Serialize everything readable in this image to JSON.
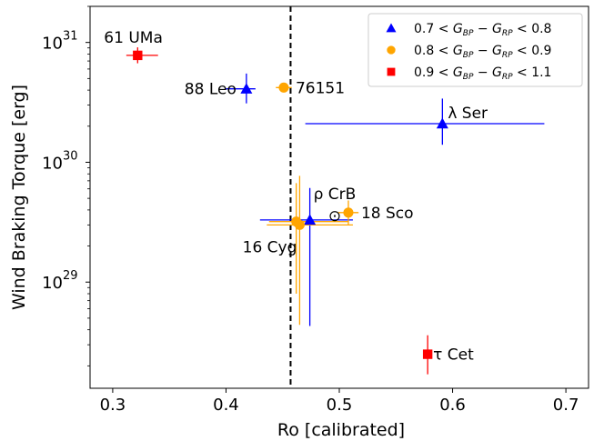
{
  "chart_data": {
    "type": "scatter",
    "xlabel": "Ro [calibrated]",
    "ylabel": "Wind Braking Torque [erg]",
    "xlim": [
      0.28,
      0.72
    ],
    "ylim": [
      1.3e+28,
      2e+31
    ],
    "y_scale": "log",
    "x_ticks": [
      0.3,
      0.4,
      0.5,
      0.6,
      0.7
    ],
    "x_tick_labels": [
      "0.3",
      "0.4",
      "0.5",
      "0.6",
      "0.7"
    ],
    "y_ticks": [
      1e+29,
      1e+30,
      1e+31
    ],
    "y_tick_labels": [
      {
        "base": "10",
        "exp": "29"
      },
      {
        "base": "10",
        "exp": "30"
      },
      {
        "base": "10",
        "exp": "31"
      }
    ],
    "reference_line": {
      "x": 0.457,
      "style": "dashed",
      "color": "#000000"
    },
    "sun": {
      "x": 0.496,
      "y": 3.6e+29,
      "symbol": "⊙"
    },
    "legend": {
      "placement": "top-right",
      "entries": [
        {
          "label_prefix": "0.7 < ",
          "label_suffix": " < 0.8",
          "marker": "triangle",
          "color": "#0000ff"
        },
        {
          "label_prefix": "0.8 < ",
          "label_suffix": " < 0.9",
          "marker": "circle",
          "color": "#ffa500"
        },
        {
          "label_prefix": "0.9 < ",
          "label_suffix": " < 1.1",
          "marker": "square",
          "color": "#ff0000"
        }
      ],
      "term_a": {
        "main": "G",
        "sub": "BP"
      },
      "term_b": {
        "main": "G",
        "sub": "RP"
      },
      "minus": "−"
    },
    "points": [
      {
        "name": "61 UMa",
        "group": 2,
        "x": 0.322,
        "y": 7.8e+30,
        "xerr": [
          0.01,
          0.018
        ],
        "yerr": [
          1.1e+30,
          1.3e+30
        ],
        "label": "61 UMa",
        "label_anchor": "start",
        "label_dx": -37,
        "label_dy": -14
      },
      {
        "name": "88 Leo",
        "group": 0,
        "x": 0.418,
        "y": 4.1e+30,
        "xerr": [
          0.018,
          0.008
        ],
        "yerr": [
          1e+30,
          1.4e+30
        ],
        "label": "88 Leo",
        "label_anchor": "end",
        "label_dx": -11,
        "label_dy": 6
      },
      {
        "name": "76151",
        "group": 1,
        "x": 0.451,
        "y": 4.2e+30,
        "xerr": [
          0.007,
          0.007
        ],
        "yerr": [
          3.5e+29,
          3.5e+29
        ],
        "label": "76151",
        "label_anchor": "start",
        "label_dx": 13,
        "label_dy": 6
      },
      {
        "name": "λ Ser",
        "group": 0,
        "x": 0.591,
        "y": 2.1e+30,
        "xerr": [
          0.121,
          0.09
        ],
        "yerr": [
          7e+29,
          1.3e+30
        ],
        "label": "λ Ser",
        "label_anchor": "start",
        "label_dx": 6,
        "label_dy": -6
      },
      {
        "name": "ρ CrB",
        "group": 0,
        "x": 0.474,
        "y": 3.3e+29,
        "xerr": [
          0.044,
          0.038
        ],
        "yerr": [
          2.87e+29,
          2.8e+29
        ],
        "label": "ρ CrB",
        "label_anchor": "start",
        "label_dx": 4,
        "label_dy": -23
      },
      {
        "name": "18 Sco",
        "group": 1,
        "x": 0.508,
        "y": 3.8e+29,
        "xerr": [
          0.009,
          0.009
        ],
        "yerr": [
          8e+28,
          1e+29
        ],
        "label": "18 Sco",
        "label_anchor": "start",
        "label_dx": 14,
        "label_dy": 6
      },
      {
        "name": "16 Cyg A",
        "group": 1,
        "x": 0.462,
        "y": 3.2e+29,
        "xerr": [
          0.024,
          0.046
        ],
        "yerr": [
          2.4e+29,
          3.5e+29
        ],
        "label": "",
        "label_anchor": "start",
        "label_dx": 0,
        "label_dy": 0
      },
      {
        "name": "16 Cyg B",
        "group": 1,
        "x": 0.465,
        "y": 3e+29,
        "xerr": [
          0.029,
          0.047
        ],
        "yerr": [
          2.56e+29,
          4.7e+29
        ],
        "label": "16 Cyg",
        "label_anchor": "end",
        "label_dx": -3,
        "label_dy": 30
      },
      {
        "name": "τ Cet",
        "group": 2,
        "x": 0.578,
        "y": 2.5e+28,
        "xerr": [
          0.002,
          0.002
        ],
        "yerr": [
          8e+27,
          1.1e+28
        ],
        "label": "τ Cet",
        "label_anchor": "start",
        "label_dx": 6,
        "label_dy": 6
      }
    ]
  }
}
